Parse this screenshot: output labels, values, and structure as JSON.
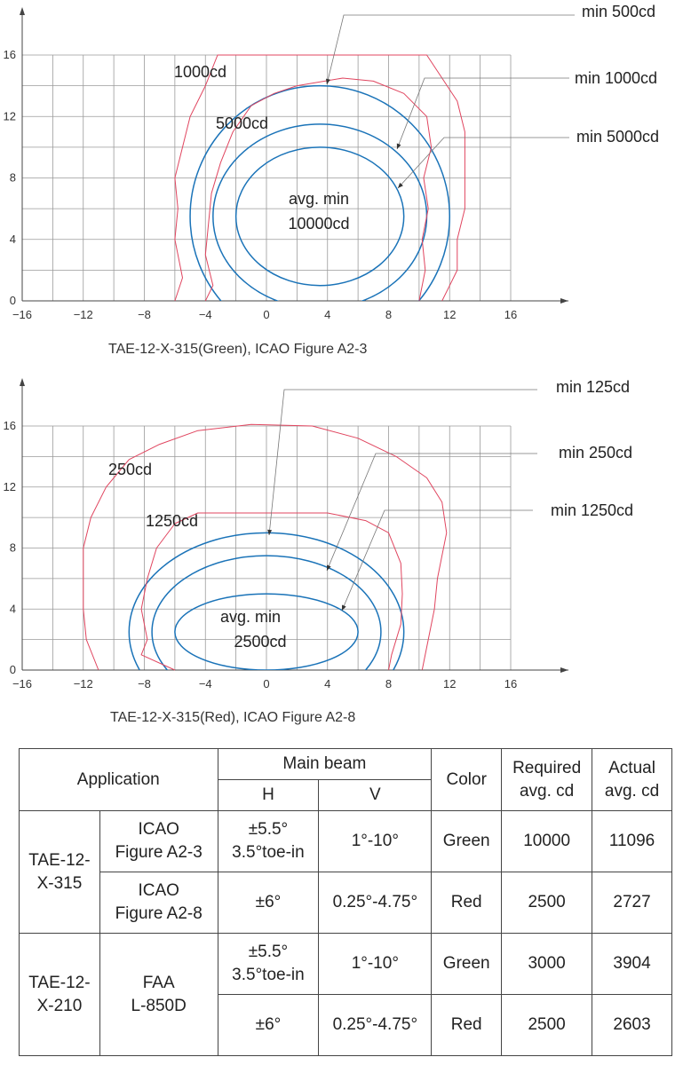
{
  "charts": [
    {
      "caption": "TAE-12-X-315(Green), ICAO Figure A2-3",
      "x_ticks": [
        "−16",
        "−12",
        "−8",
        "−4",
        "0",
        "4",
        "8",
        "12",
        "16"
      ],
      "y_ticks": [
        "0",
        "4",
        "8",
        "12",
        "16"
      ],
      "inner_labels": [
        "1000cd",
        "5000cd",
        "avg. min",
        "10000cd"
      ],
      "callouts": [
        "min 500cd",
        "min 1000cd",
        "min 5000cd"
      ]
    },
    {
      "caption": "TAE-12-X-315(Red), ICAO Figure A2-8",
      "x_ticks": [
        "−16",
        "−12",
        "−8",
        "−4",
        "0",
        "4",
        "8",
        "12",
        "16"
      ],
      "y_ticks": [
        "0",
        "4",
        "8",
        "12",
        "16"
      ],
      "inner_labels": [
        "250cd",
        "1250cd",
        "avg. min",
        "2500cd"
      ],
      "callouts": [
        "min 125cd",
        "min 250cd",
        "min 1250cd"
      ]
    }
  ],
  "chart_data": [
    {
      "type": "contour",
      "title": "TAE-12-X-315(Green), ICAO Figure A2-3",
      "xlim": [
        -16,
        16
      ],
      "ylim": [
        0,
        16
      ],
      "grid": true,
      "ellipses": [
        {
          "label": "min 500cd",
          "cx": 3.5,
          "cy": 5.5,
          "rx": 8.5,
          "ry": 8.5
        },
        {
          "label": "min 1000cd",
          "cx": 3.5,
          "cy": 5.5,
          "rx": 7.0,
          "ry": 6.0
        },
        {
          "label": "min 5000cd",
          "cx": 3.5,
          "cy": 5.5,
          "rx": 5.5,
          "ry": 4.5
        }
      ],
      "measured_1000cd": [
        [
          -6,
          0
        ],
        [
          -5.5,
          1.5
        ],
        [
          -6,
          4
        ],
        [
          -5.8,
          6
        ],
        [
          -6,
          8
        ],
        [
          -5.5,
          10
        ],
        [
          -5,
          12
        ],
        [
          -4,
          14
        ],
        [
          -3.2,
          16
        ],
        [
          10.5,
          16
        ],
        [
          11.5,
          14.5
        ],
        [
          12.5,
          13
        ],
        [
          13,
          11
        ],
        [
          13,
          8
        ],
        [
          13,
          6
        ],
        [
          12.5,
          4
        ],
        [
          12.5,
          2
        ],
        [
          12,
          1
        ],
        [
          11.5,
          0
        ]
      ],
      "measured_5000cd": [
        [
          -4,
          0
        ],
        [
          -3.5,
          1
        ],
        [
          -4,
          3
        ],
        [
          -3.8,
          5
        ],
        [
          -3.6,
          7
        ],
        [
          -3,
          9
        ],
        [
          -2.2,
          11
        ],
        [
          -1,
          12.7
        ],
        [
          0.5,
          13.5
        ],
        [
          2,
          14
        ],
        [
          5,
          14.5
        ],
        [
          7,
          14.3
        ],
        [
          9,
          13.5
        ],
        [
          10.5,
          12
        ],
        [
          10.8,
          10
        ],
        [
          10.3,
          8
        ],
        [
          10.6,
          6
        ],
        [
          10.2,
          4
        ],
        [
          10.4,
          2
        ],
        [
          10,
          0
        ]
      ]
    },
    {
      "type": "contour",
      "title": "TAE-12-X-315(Red), ICAO Figure A2-8",
      "xlim": [
        -16,
        16
      ],
      "ylim": [
        0,
        16
      ],
      "grid": true,
      "ellipses": [
        {
          "label": "min 125cd",
          "cx": 0,
          "cy": 2.5,
          "rx": 9,
          "ry": 6.5
        },
        {
          "label": "min 250cd",
          "cx": 0,
          "cy": 2.5,
          "rx": 7.5,
          "ry": 5
        },
        {
          "label": "min 1250cd",
          "cx": 0,
          "cy": 2.5,
          "rx": 6,
          "ry": 2.5
        }
      ],
      "measured_250cd": [
        [
          -11,
          0
        ],
        [
          -11.8,
          2
        ],
        [
          -12,
          4
        ],
        [
          -12,
          6
        ],
        [
          -12,
          8
        ],
        [
          -11.5,
          10
        ],
        [
          -10.5,
          12
        ],
        [
          -9,
          13.8
        ],
        [
          -7,
          14.8
        ],
        [
          -4.5,
          15.7
        ],
        [
          -1,
          16.1
        ],
        [
          3,
          16
        ],
        [
          6,
          15.2
        ],
        [
          8.5,
          14
        ],
        [
          10.5,
          12.6
        ],
        [
          11.5,
          11
        ],
        [
          11.8,
          9
        ],
        [
          11.2,
          6
        ],
        [
          11,
          4
        ],
        [
          10.6,
          2
        ],
        [
          10.2,
          0
        ]
      ],
      "measured_1250cd": [
        [
          -6,
          0
        ],
        [
          -8.2,
          1
        ],
        [
          -7.8,
          2
        ],
        [
          -8.2,
          4
        ],
        [
          -7.8,
          6
        ],
        [
          -7.2,
          8
        ],
        [
          -6,
          9.6
        ],
        [
          -4.5,
          10.3
        ],
        [
          -1.5,
          10.3
        ],
        [
          2,
          10.3
        ],
        [
          4,
          10.3
        ],
        [
          6.5,
          9.8
        ],
        [
          8,
          9
        ],
        [
          8.8,
          7
        ],
        [
          8.9,
          5
        ],
        [
          8.8,
          3
        ],
        [
          8.2,
          1
        ],
        [
          8,
          0
        ]
      ]
    }
  ],
  "table": {
    "header": {
      "application": "Application",
      "main_beam": "Main beam",
      "h": "H",
      "v": "V",
      "color": "Color",
      "required_1": "Required",
      "required_2": "avg. cd",
      "actual_1": "Actual",
      "actual_2": "avg. cd"
    },
    "groups": [
      {
        "model_1": "TAE-12-",
        "model_2": "X-315",
        "rows": [
          {
            "std_1": "ICAO",
            "std_2": "Figure A2-3",
            "h_1": "±5.5°",
            "h_2": "3.5°toe-in",
            "v": "1°-10°",
            "color": "Green",
            "required": "10000",
            "actual": "11096"
          },
          {
            "std_1": "ICAO",
            "std_2": "Figure A2-8",
            "h_1": "±6°",
            "h_2": "",
            "v": "0.25°-4.75°",
            "color": "Red",
            "required": "2500",
            "actual": "2727"
          }
        ]
      },
      {
        "model_1": "TAE-12-",
        "model_2": "X-210",
        "std_1": "FAA",
        "std_2": "L-850D",
        "rows": [
          {
            "h_1": "±5.5°",
            "h_2": "3.5°toe-in",
            "v": "1°-10°",
            "color": "Green",
            "required": "3000",
            "actual": "3904"
          },
          {
            "h_1": "±6°",
            "h_2": "",
            "v": "0.25°-4.75°",
            "color": "Red",
            "required": "2500",
            "actual": "2603"
          }
        ]
      }
    ]
  },
  "colors": {
    "ellipse": "#1a73b8",
    "measured": "#e0455f",
    "grid": "#9a9a9a",
    "axis": "#444444",
    "leader": "#777777"
  }
}
